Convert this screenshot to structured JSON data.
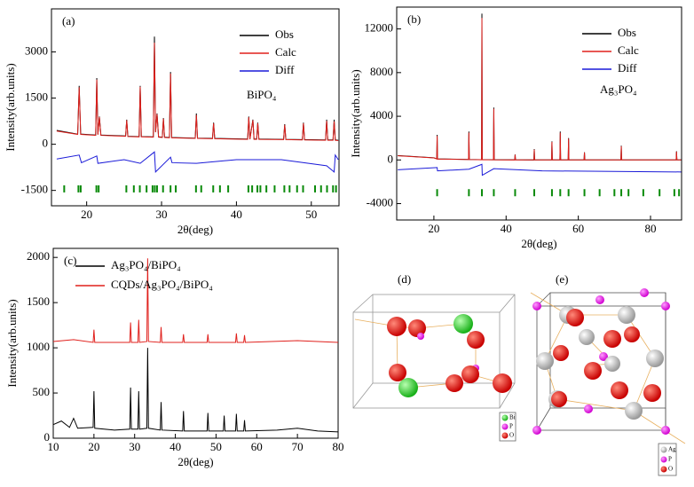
{
  "chart_data": [
    {
      "type": "line",
      "panel_label": "(a)",
      "annotation": "BiPO₄",
      "x_label": "2θ(deg)",
      "y_label": "Intensity(arb.units)",
      "xlim": [
        15.3,
        53.7
      ],
      "ylim": [
        -2000,
        4400
      ],
      "xticks": [
        20,
        30,
        40,
        50
      ],
      "yticks": [
        -1500,
        0,
        1500,
        3000
      ],
      "legend": "upper right",
      "series": [
        {
          "name": "Obs",
          "color": "#000000",
          "x": [
            16,
            18.8,
            19.0,
            19.2,
            21.2,
            21.35,
            21.5,
            21.7,
            21.9,
            25.2,
            25.35,
            25.5,
            27.0,
            27.15,
            27.3,
            28.9,
            29.05,
            29.2,
            29.4,
            29.6,
            30.1,
            30.25,
            30.4,
            31.05,
            31.2,
            31.35,
            34.5,
            34.65,
            34.8,
            36.8,
            36.95,
            37.1,
            41.5,
            41.65,
            41.8,
            42.2,
            42.35,
            42.7,
            42.85,
            43.0,
            46.3,
            46.45,
            46.6,
            48.8,
            48.95,
            49.1,
            51.9,
            52.05,
            52.2,
            52.9,
            53.05,
            53.2,
            53.6
          ],
          "values": [
            450,
            330,
            1900,
            330,
            300,
            2150,
            320,
            900,
            300,
            270,
            800,
            260,
            250,
            1900,
            250,
            240,
            3500,
            400,
            1000,
            240,
            230,
            850,
            230,
            220,
            2350,
            220,
            200,
            1000,
            200,
            190,
            700,
            190,
            170,
            900,
            170,
            800,
            170,
            170,
            700,
            170,
            160,
            650,
            160,
            150,
            700,
            150,
            140,
            800,
            140,
            140,
            800,
            140,
            130
          ]
        },
        {
          "name": "Calc",
          "color": "#e0201c",
          "x": [
            16,
            18.8,
            19.0,
            19.2,
            21.2,
            21.35,
            21.5,
            21.7,
            21.9,
            25.2,
            25.35,
            25.5,
            27.0,
            27.15,
            27.3,
            28.9,
            29.05,
            29.2,
            29.4,
            29.6,
            30.1,
            30.25,
            30.4,
            31.05,
            31.2,
            31.35,
            34.5,
            34.65,
            34.8,
            36.8,
            36.95,
            37.1,
            41.5,
            41.65,
            41.8,
            42.2,
            42.35,
            42.7,
            42.85,
            43.0,
            46.3,
            46.45,
            46.6,
            48.8,
            48.95,
            49.1,
            51.9,
            52.05,
            52.2,
            52.9,
            53.05,
            53.2,
            53.6
          ],
          "values": [
            430,
            320,
            1850,
            320,
            290,
            2100,
            310,
            880,
            290,
            260,
            780,
            250,
            240,
            1870,
            240,
            230,
            3300,
            390,
            980,
            230,
            220,
            830,
            220,
            210,
            2300,
            210,
            190,
            950,
            190,
            180,
            680,
            180,
            160,
            880,
            160,
            780,
            160,
            160,
            680,
            160,
            150,
            630,
            150,
            140,
            680,
            140,
            130,
            760,
            130,
            130,
            740,
            130,
            120
          ]
        },
        {
          "name": "Diff",
          "color": "#1a1ad8",
          "x": [
            16,
            19.0,
            19.3,
            21.35,
            21.5,
            25,
            27.15,
            29.05,
            29.2,
            31.2,
            31.4,
            34.65,
            40,
            46,
            52.05,
            53.05,
            53.2,
            53.6
          ],
          "values": [
            -480,
            -350,
            -600,
            -380,
            -620,
            -500,
            -620,
            -250,
            -900,
            -420,
            -600,
            -620,
            -500,
            -500,
            -700,
            -900,
            -350,
            -500
          ]
        }
      ],
      "reflections": {
        "color": "#0a8a0a",
        "y": -1450,
        "x": [
          17.0,
          18.9,
          19.2,
          21.3,
          21.6,
          25.3,
          26.3,
          27.1,
          28.0,
          28.8,
          29.1,
          29.4,
          30.2,
          31.2,
          31.9,
          34.6,
          35.3,
          36.9,
          37.8,
          38.9,
          41.6,
          42.1,
          42.8,
          43.2,
          44.0,
          45.1,
          46.4,
          47.1,
          48.1,
          48.9,
          50.5,
          51.3,
          52.1,
          52.9,
          53.3
        ]
      }
    },
    {
      "type": "line",
      "panel_label": "(b)",
      "annotation": "Ag₃PO₄",
      "x_label": "2θ(deg)",
      "y_label": "Intensity(arb.units)",
      "xlim": [
        9.7,
        88.6
      ],
      "ylim": [
        -5500,
        14000
      ],
      "xticks": [
        20,
        40,
        60,
        80
      ],
      "yticks": [
        -4000,
        0,
        4000,
        8000,
        12000
      ],
      "legend": "upper right",
      "series": [
        {
          "name": "Obs",
          "color": "#000000",
          "x": [
            10,
            20,
            20.8,
            20.9,
            21.0,
            29.6,
            29.7,
            29.8,
            33.2,
            33.3,
            33.4,
            36.5,
            36.6,
            36.7,
            42.4,
            42.5,
            42.6,
            47.7,
            47.8,
            47.9,
            52.6,
            52.7,
            52.8,
            54.9,
            55.0,
            55.1,
            57.2,
            57.3,
            57.4,
            61.6,
            61.7,
            61.8,
            71.8,
            71.9,
            72.0,
            87.1,
            87.2,
            87.3,
            88.5
          ],
          "values": [
            400,
            200,
            100,
            2300,
            100,
            50,
            2600,
            50,
            30,
            13400,
            30,
            20,
            4800,
            20,
            10,
            500,
            10,
            0,
            1000,
            0,
            0,
            1700,
            0,
            0,
            2600,
            0,
            0,
            2000,
            0,
            0,
            700,
            0,
            0,
            1300,
            0,
            0,
            800,
            0,
            0
          ]
        },
        {
          "name": "Calc",
          "color": "#e0201c",
          "x": [
            10,
            20,
            20.8,
            20.9,
            21.0,
            29.6,
            29.7,
            29.8,
            33.2,
            33.3,
            33.4,
            36.5,
            36.6,
            36.7,
            42.4,
            42.5,
            42.6,
            47.7,
            47.8,
            47.9,
            52.6,
            52.7,
            52.8,
            54.9,
            55.0,
            55.1,
            57.2,
            57.3,
            57.4,
            61.6,
            61.7,
            61.8,
            71.8,
            71.9,
            72.0,
            87.1,
            87.2,
            87.3,
            88.5
          ],
          "values": [
            380,
            190,
            90,
            2200,
            90,
            40,
            2500,
            40,
            20,
            13000,
            20,
            10,
            4700,
            10,
            0,
            480,
            0,
            0,
            950,
            0,
            0,
            1650,
            0,
            0,
            2500,
            0,
            0,
            1950,
            0,
            0,
            680,
            0,
            0,
            1250,
            0,
            0,
            760,
            0,
            0
          ]
        },
        {
          "name": "Diff",
          "color": "#1a1ad8",
          "x": [
            10,
            20.9,
            21.0,
            29.7,
            33.3,
            33.4,
            36.6,
            50,
            88.5
          ],
          "values": [
            -900,
            -700,
            -1000,
            -850,
            -400,
            -1400,
            -800,
            -1000,
            -1100
          ]
        }
      ],
      "reflections": {
        "color": "#0a8a0a",
        "y": -3000,
        "x": [
          20.9,
          29.7,
          33.3,
          36.6,
          42.5,
          47.8,
          52.7,
          55.0,
          57.3,
          61.7,
          65.9,
          70.0,
          71.9,
          73.9,
          78.0,
          82.5,
          86.6,
          87.9
        ]
      }
    },
    {
      "type": "line",
      "panel_label": "(c)",
      "x_label": "2θ(deg)",
      "y_label": "Intensity(arb.units)",
      "xlim": [
        10,
        80
      ],
      "ylim": [
        0,
        2100
      ],
      "xticks": [
        10,
        20,
        30,
        40,
        50,
        60,
        70,
        80
      ],
      "yticks": [
        0,
        500,
        1000,
        1500,
        2000
      ],
      "legend": "upper left",
      "series": [
        {
          "name": "Ag₃PO₄/BiPO₄",
          "color": "#000000",
          "x": [
            10,
            12,
            14,
            15,
            16,
            19.8,
            20,
            20.2,
            25,
            28.8,
            29,
            29.2,
            30.8,
            31,
            31.2,
            33,
            33.2,
            33.4,
            36.3,
            36.5,
            36.7,
            41.8,
            42,
            42.2,
            47.8,
            48,
            48.2,
            51.8,
            52,
            52.2,
            54.8,
            55,
            55.2,
            56.8,
            57,
            57.2,
            65,
            70,
            75,
            80
          ],
          "values": [
            150,
            190,
            120,
            220,
            110,
            120,
            520,
            110,
            90,
            100,
            560,
            100,
            100,
            520,
            100,
            110,
            1000,
            110,
            90,
            400,
            90,
            80,
            300,
            80,
            80,
            280,
            80,
            80,
            250,
            80,
            80,
            270,
            80,
            80,
            200,
            80,
            90,
            110,
            80,
            70
          ]
        },
        {
          "name": "CQDs/Ag₃PO₄/BiPO₄",
          "color": "#e0201c",
          "x": [
            10,
            15,
            19.8,
            20,
            20.2,
            28.8,
            29,
            29.2,
            30.8,
            31,
            31.2,
            33,
            33.2,
            33.4,
            36.3,
            36.5,
            36.7,
            41.8,
            42,
            42.2,
            47.8,
            48,
            48.2,
            54.8,
            55,
            55.2,
            56.8,
            57,
            57.2,
            70,
            80
          ],
          "values": [
            1070,
            1090,
            1060,
            1200,
            1060,
            1060,
            1280,
            1060,
            1060,
            1310,
            1060,
            1070,
            1990,
            1070,
            1060,
            1230,
            1060,
            1060,
            1150,
            1060,
            1060,
            1150,
            1060,
            1060,
            1160,
            1060,
            1060,
            1140,
            1060,
            1080,
            1060
          ]
        }
      ]
    }
  ],
  "structures": [
    {
      "label": "(d)",
      "legend": [
        "Bi",
        "P",
        "O"
      ]
    },
    {
      "label": "(e)",
      "legend": [
        "Ag",
        "P",
        "O"
      ]
    }
  ]
}
